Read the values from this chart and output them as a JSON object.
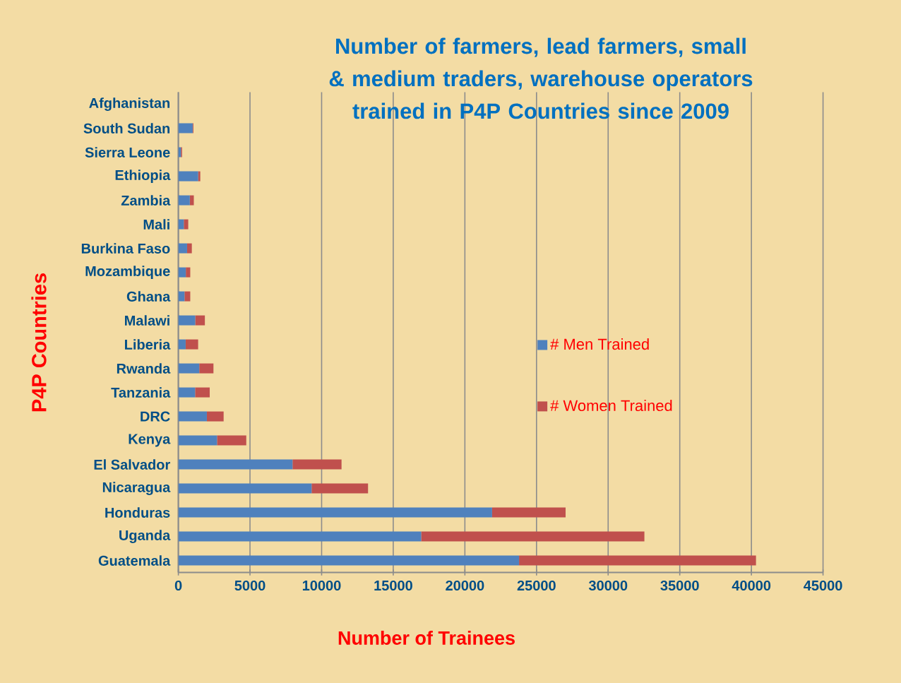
{
  "chart_data": {
    "type": "bar",
    "orientation": "horizontal",
    "stacked": true,
    "title": "Number of farmers, lead farmers, small & medium traders, warehouse operators trained in P4P Countries since 2009",
    "xlabel": "Number of Trainees",
    "ylabel": "P4P Countries",
    "categories": [
      "Afghanistan",
      "South Sudan",
      "Sierra Leone",
      "Ethiopia",
      "Zambia",
      "Mali",
      "Burkina Faso",
      "Mozambique",
      "Ghana",
      "Malawi",
      "Liberia",
      "Rwanda",
      "Tanzania",
      "DRC",
      "Kenya",
      "El Salvador",
      "Nicaragua",
      "Honduras",
      "Uganda",
      "Guatemala"
    ],
    "series": [
      {
        "name": "# Men Trained",
        "color": "#4f81bd",
        "values": [
          0,
          1000,
          180,
          1380,
          800,
          380,
          610,
          520,
          430,
          1180,
          510,
          1460,
          1170,
          1990,
          2700,
          7970,
          9300,
          21900,
          16950,
          23780
        ]
      },
      {
        "name": "# Women Trained",
        "color": "#c0504d",
        "values": [
          0,
          50,
          80,
          150,
          280,
          310,
          330,
          310,
          400,
          670,
          870,
          990,
          1020,
          1170,
          2040,
          3420,
          3940,
          5130,
          15580,
          16540
        ]
      }
    ],
    "xlim": [
      0,
      45000
    ],
    "xticks": [
      0,
      5000,
      10000,
      15000,
      20000,
      25000,
      30000,
      35000,
      40000,
      45000
    ],
    "grid": "x",
    "legend": "right"
  }
}
